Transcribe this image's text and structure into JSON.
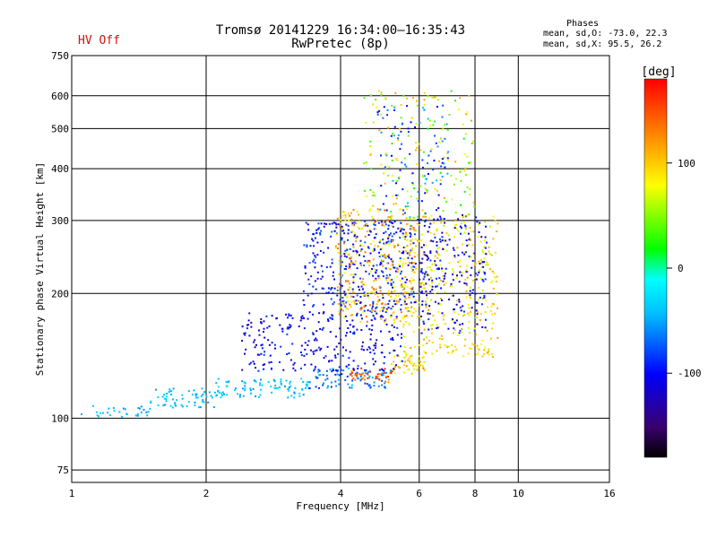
{
  "header": {
    "title_line1": "Tromsø 20141229 16:34:00–16:35:43",
    "title_line2": "RwPretec (8p)",
    "status": "HV Off",
    "stats_title": "Phases",
    "stats_o": "mean, sd,O: -73.0, 22.3",
    "stats_x": "mean, sd,X:  95.5, 26.2"
  },
  "colorbar": {
    "unit_label": "[deg]",
    "ticks": [
      {
        "value": 100,
        "label": "100"
      },
      {
        "value": 0,
        "label": "0"
      },
      {
        "value": -100,
        "label": "-100"
      }
    ],
    "range": [
      -180,
      180
    ],
    "colormap": [
      "#000000",
      "#3a006e",
      "#0000ff",
      "#00bfff",
      "#00ffff",
      "#00ff00",
      "#ffff00",
      "#ff8000",
      "#ff0000"
    ]
  },
  "chart_data": {
    "type": "scatter",
    "xlabel": "Frequency [MHz]",
    "ylabel": "Stationary phase Virtual Height [km]",
    "xscale": "log",
    "yscale": "log",
    "xlim": [
      1,
      16
    ],
    "ylim": [
      70,
      750
    ],
    "xticks": [
      1,
      2,
      4,
      6,
      8,
      10,
      16
    ],
    "yticks": [
      75,
      100,
      200,
      300,
      400,
      500,
      600,
      750
    ],
    "grid": true,
    "color_value": "phase [deg]",
    "clusters": [
      {
        "x_range": [
          1.05,
          1.5
        ],
        "y_range": [
          100,
          108
        ],
        "phase_range": [
          -60,
          -30
        ]
      },
      {
        "x_range": [
          1.5,
          2.1
        ],
        "y_range": [
          106,
          118
        ],
        "phase_range": [
          -60,
          -30
        ]
      },
      {
        "x_range": [
          2.1,
          3.4
        ],
        "y_range": [
          112,
          125
        ],
        "phase_range": [
          -60,
          -20
        ]
      },
      {
        "x_range": [
          3.4,
          5.2
        ],
        "y_range": [
          118,
          132
        ],
        "phase_range": [
          -90,
          -40
        ]
      },
      {
        "x_range": [
          4.2,
          5.3
        ],
        "y_range": [
          122,
          132
        ],
        "phase_range": [
          120,
          170
        ]
      },
      {
        "x_range": [
          5.2,
          6.2
        ],
        "y_range": [
          128,
          142
        ],
        "phase_range": [
          60,
          130
        ]
      },
      {
        "x_range": [
          2.4,
          5.5
        ],
        "y_range": [
          130,
          180
        ],
        "phase_range": [
          -130,
          -80
        ]
      },
      {
        "x_range": [
          3.3,
          5.9
        ],
        "y_range": [
          180,
          300
        ],
        "phase_range": [
          -120,
          -70
        ]
      },
      {
        "x_range": [
          3.9,
          5.9
        ],
        "y_range": [
          170,
          320
        ],
        "phase_range": [
          70,
          140
        ]
      },
      {
        "x_range": [
          5.5,
          9.0
        ],
        "y_range": [
          140,
          310
        ],
        "phase_range": [
          60,
          120
        ]
      },
      {
        "x_range": [
          6.0,
          8.5
        ],
        "y_range": [
          160,
          310
        ],
        "phase_range": [
          -130,
          -80
        ]
      },
      {
        "x_range": [
          4.5,
          8.0
        ],
        "y_range": [
          300,
          620
        ],
        "phase_range": [
          20,
          120
        ]
      },
      {
        "x_range": [
          4.8,
          7.0
        ],
        "y_range": [
          300,
          580
        ],
        "phase_range": [
          -110,
          -40
        ]
      }
    ]
  }
}
